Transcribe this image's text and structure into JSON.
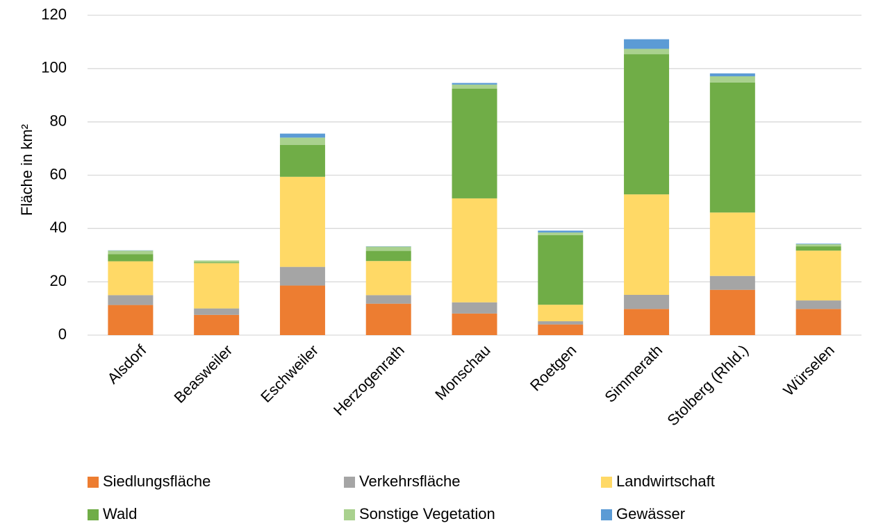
{
  "chart_data": {
    "type": "bar",
    "stacked": true,
    "title": "",
    "xlabel": "",
    "ylabel": "Fläche in km²",
    "ylim": [
      0,
      120
    ],
    "yticks": [
      0,
      20,
      40,
      60,
      80,
      100,
      120
    ],
    "grid": true,
    "legend_position": "bottom",
    "categories": [
      "Alsdorf",
      "Beasweiler",
      "Eschweiler",
      "Herzogenrath",
      "Monschau",
      "Roetgen",
      "Simmerath",
      "Stolberg (Rhld.)",
      "Würselen"
    ],
    "series": [
      {
        "name": "Siedlungsfläche",
        "color": "#ED7D31",
        "values": [
          11.3,
          7.6,
          18.6,
          11.8,
          8.1,
          4.0,
          9.8,
          17.0,
          9.8
        ]
      },
      {
        "name": "Verkehrsfläche",
        "color": "#A5A5A5",
        "values": [
          3.7,
          2.4,
          7.0,
          3.2,
          4.2,
          1.2,
          5.3,
          5.2,
          3.2
        ]
      },
      {
        "name": "Landwirtschaft",
        "color": "#FFD966",
        "values": [
          12.7,
          17.0,
          33.8,
          12.8,
          39.0,
          6.2,
          37.7,
          23.8,
          18.7
        ]
      },
      {
        "name": "Wald",
        "color": "#70AD47",
        "values": [
          2.7,
          0.3,
          12.0,
          3.8,
          41.2,
          26.1,
          52.6,
          48.8,
          1.6
        ]
      },
      {
        "name": "Sonstige Vegetation",
        "color": "#A9D18E",
        "values": [
          1.3,
          0.7,
          2.7,
          1.6,
          1.5,
          1.0,
          2.0,
          2.3,
          0.8
        ]
      },
      {
        "name": "Gewässer",
        "color": "#5B9BD5",
        "values": [
          0.1,
          0.0,
          1.5,
          0.1,
          0.6,
          0.7,
          3.6,
          1.1,
          0.2
        ]
      }
    ]
  }
}
